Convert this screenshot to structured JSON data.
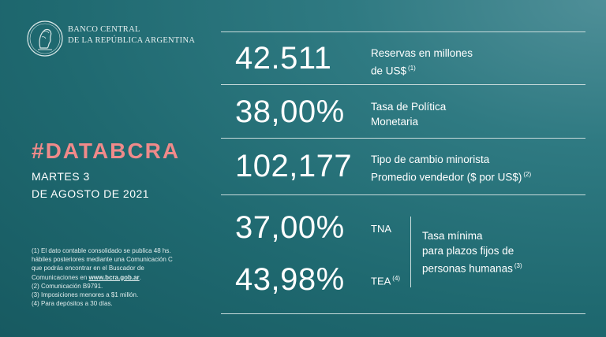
{
  "header": {
    "bank_line1": "BANCO CENTRAL",
    "bank_line2": "DE LA REPÚBLICA ARGENTINA"
  },
  "left": {
    "hashtag": "#DATABCRA",
    "date_line1": "MARTES 3",
    "date_line2": "DE AGOSTO DE 2021",
    "notes": [
      "(1) El dato contable consolidado se publica 48 hs.",
      "hábiles posteriores mediante una Comunicación C",
      "que podrás encontrar en el Buscador de",
      "Comunicaciones en",
      "www.bcra.gob.ar",
      "(2) Comunicación B9791.",
      "(3) Imposiciones menores a $1 millón.",
      "(4) Para depósitos a 30 días."
    ]
  },
  "indicators": [
    {
      "value": "42.511",
      "label_line1": "Reservas en millones",
      "label_line2": "de US$",
      "note": "(1)"
    },
    {
      "value": "38,00%",
      "label_line1": "Tasa de Política",
      "label_line2": "Monetaria",
      "note": ""
    },
    {
      "value": "102,177",
      "label_line1": "Tipo de cambio minorista",
      "label_line2": "Promedio vendedor  ($ por US$)",
      "note": "(2)"
    }
  ],
  "rates": {
    "tna_value": "37,00%",
    "tna_label": "TNA",
    "tea_value": "43,98%",
    "tea_label": "TEA",
    "tea_note": "(4)",
    "desc_line1": "Tasa mínima",
    "desc_line2": "para plazos fijos de",
    "desc_line3": "personas humanas",
    "desc_note": "(3)"
  },
  "colors": {
    "accent": "#f08a8a",
    "background": "#1f6970"
  }
}
